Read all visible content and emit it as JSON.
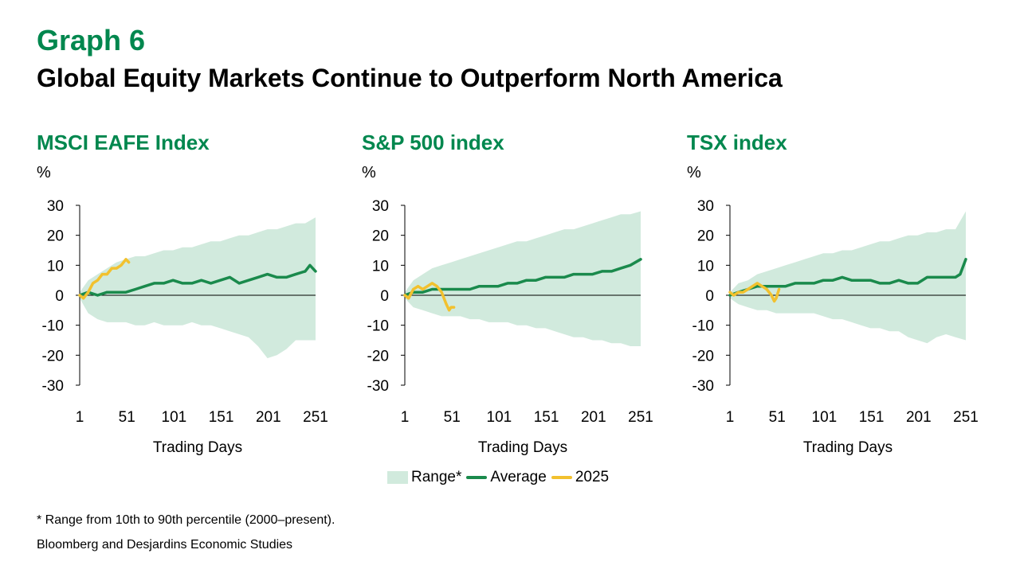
{
  "header": {
    "graph_number": "Graph 6",
    "title": "Global Equity Markets Continue to Outperform North America"
  },
  "colors": {
    "accent": "#00874e",
    "range": "#d1eadd",
    "average": "#1a8a4c",
    "y2025": "#f2c12e"
  },
  "legend": {
    "range_label": "Range*",
    "average_label": "Average",
    "y2025_label": "2025"
  },
  "footnote": "* Range from 10th to 90th percentile (2000–present).",
  "source": "Bloomberg and Desjardins Economic Studies",
  "chart_data": [
    {
      "type": "area",
      "title": "MSCI EAFE Index",
      "ylabel": "%",
      "xlabel": "Trading Days",
      "ylim": [
        -30,
        30
      ],
      "xlim": [
        1,
        251
      ],
      "yticks": [
        30,
        20,
        10,
        0,
        -10,
        -20,
        -30
      ],
      "ytick_labels": [
        "30",
        "20",
        "10",
        "0",
        "-10",
        "-20",
        "-30"
      ],
      "xticks": [
        1,
        51,
        101,
        151,
        201,
        251
      ],
      "range_x": [
        1,
        10,
        20,
        30,
        40,
        50,
        60,
        70,
        80,
        90,
        100,
        110,
        120,
        130,
        140,
        150,
        160,
        170,
        180,
        190,
        200,
        210,
        220,
        230,
        240,
        251
      ],
      "range_upper": [
        1,
        5,
        7,
        9,
        11,
        12,
        13,
        13,
        14,
        15,
        15,
        16,
        16,
        17,
        18,
        18,
        19,
        20,
        20,
        21,
        22,
        22,
        23,
        24,
        24,
        26
      ],
      "range_lower": [
        -1,
        -6,
        -8,
        -9,
        -9,
        -9,
        -10,
        -10,
        -9,
        -10,
        -10,
        -10,
        -9,
        -10,
        -10,
        -11,
        -12,
        -13,
        -14,
        -17,
        -21,
        -20,
        -18,
        -15,
        -15,
        -15
      ],
      "average_x": [
        1,
        10,
        20,
        30,
        40,
        50,
        60,
        70,
        80,
        90,
        100,
        110,
        120,
        130,
        140,
        150,
        160,
        170,
        180,
        190,
        200,
        210,
        220,
        230,
        240,
        245,
        251
      ],
      "average_y": [
        0,
        1,
        0,
        1,
        1,
        1,
        2,
        3,
        4,
        4,
        5,
        4,
        4,
        5,
        4,
        5,
        6,
        4,
        5,
        6,
        7,
        6,
        6,
        7,
        8,
        10,
        8
      ],
      "y2025_x": [
        1,
        5,
        10,
        15,
        20,
        25,
        30,
        35,
        40,
        45,
        50,
        53
      ],
      "y2025_y": [
        0,
        -1,
        1,
        4,
        5,
        7,
        7,
        9,
        9,
        10,
        12,
        11
      ]
    },
    {
      "type": "area",
      "title": "S&P 500 index",
      "ylabel": "%",
      "xlabel": "Trading Days",
      "ylim": [
        -30,
        30
      ],
      "xlim": [
        1,
        251
      ],
      "yticks": [
        30,
        20,
        10,
        0,
        -10,
        -20,
        -30
      ],
      "ytick_labels": [
        "30",
        "20",
        "10",
        "0",
        "-10",
        "-20",
        "-30"
      ],
      "xticks": [
        1,
        51,
        101,
        151,
        201,
        251
      ],
      "range_x": [
        1,
        10,
        20,
        30,
        40,
        50,
        60,
        70,
        80,
        90,
        100,
        110,
        120,
        130,
        140,
        150,
        160,
        170,
        180,
        190,
        200,
        210,
        220,
        230,
        240,
        251
      ],
      "range_upper": [
        1,
        5,
        7,
        9,
        10,
        11,
        12,
        13,
        14,
        15,
        16,
        17,
        18,
        18,
        19,
        20,
        21,
        22,
        22,
        23,
        24,
        25,
        26,
        27,
        27,
        28
      ],
      "range_lower": [
        -1,
        -4,
        -5,
        -6,
        -7,
        -7,
        -7,
        -8,
        -8,
        -9,
        -9,
        -9,
        -10,
        -10,
        -11,
        -11,
        -12,
        -13,
        -14,
        -14,
        -15,
        -15,
        -16,
        -16,
        -17,
        -17
      ],
      "average_x": [
        1,
        10,
        20,
        30,
        40,
        50,
        60,
        70,
        80,
        90,
        100,
        110,
        120,
        130,
        140,
        150,
        160,
        170,
        180,
        190,
        200,
        210,
        220,
        230,
        240,
        251
      ],
      "average_y": [
        0,
        1,
        1,
        2,
        2,
        2,
        2,
        2,
        3,
        3,
        3,
        4,
        4,
        5,
        5,
        6,
        6,
        6,
        7,
        7,
        7,
        8,
        8,
        9,
        10,
        12
      ],
      "y2025_x": [
        1,
        5,
        10,
        15,
        20,
        25,
        30,
        35,
        40,
        45,
        48,
        50,
        53
      ],
      "y2025_y": [
        0,
        -1,
        2,
        3,
        2,
        3,
        4,
        3,
        1,
        -3,
        -5,
        -4,
        -4
      ]
    },
    {
      "type": "area",
      "title": "TSX index",
      "ylabel": "%",
      "xlabel": "Trading Days",
      "ylim": [
        -30,
        30
      ],
      "xlim": [
        1,
        251
      ],
      "yticks": [
        30,
        20,
        10,
        0,
        -10,
        -20,
        -30
      ],
      "ytick_labels": [
        "30",
        "20",
        "10",
        "0",
        "-10",
        "-20",
        "-30"
      ],
      "xticks": [
        1,
        51,
        101,
        151,
        201,
        251
      ],
      "range_x": [
        1,
        10,
        20,
        30,
        40,
        50,
        60,
        70,
        80,
        90,
        100,
        110,
        120,
        130,
        140,
        150,
        160,
        170,
        180,
        190,
        200,
        210,
        220,
        230,
        240,
        251
      ],
      "range_upper": [
        1,
        4,
        5,
        7,
        8,
        9,
        10,
        11,
        12,
        13,
        14,
        14,
        15,
        15,
        16,
        17,
        18,
        18,
        19,
        20,
        20,
        21,
        21,
        22,
        22,
        28
      ],
      "range_lower": [
        -1,
        -3,
        -4,
        -5,
        -5,
        -6,
        -6,
        -6,
        -6,
        -6,
        -7,
        -8,
        -8,
        -9,
        -10,
        -11,
        -11,
        -12,
        -12,
        -14,
        -15,
        -16,
        -14,
        -13,
        -14,
        -15
      ],
      "average_x": [
        1,
        10,
        20,
        30,
        40,
        50,
        60,
        70,
        80,
        90,
        100,
        110,
        120,
        130,
        140,
        150,
        160,
        170,
        180,
        190,
        200,
        210,
        220,
        230,
        240,
        245,
        251
      ],
      "average_y": [
        0,
        1,
        2,
        3,
        3,
        3,
        3,
        4,
        4,
        4,
        5,
        5,
        6,
        5,
        5,
        5,
        4,
        4,
        5,
        4,
        4,
        6,
        6,
        6,
        6,
        7,
        12
      ],
      "y2025_x": [
        1,
        5,
        10,
        15,
        20,
        25,
        30,
        35,
        40,
        45,
        48,
        50,
        53
      ],
      "y2025_y": [
        1,
        0,
        1,
        1,
        2,
        3,
        4,
        3,
        2,
        0,
        -2,
        -1,
        2
      ]
    }
  ]
}
